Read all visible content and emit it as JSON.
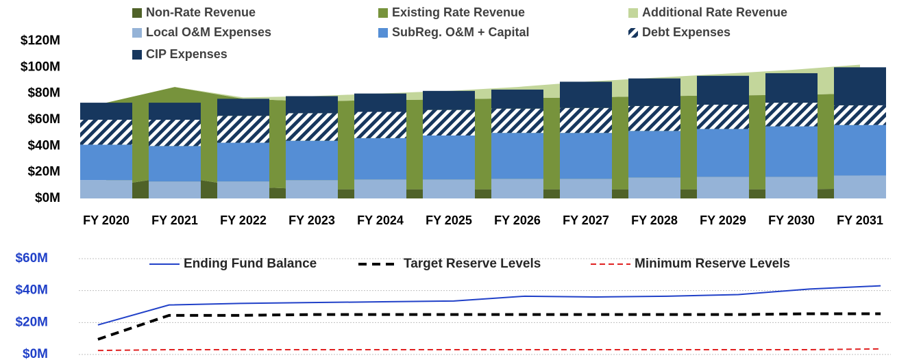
{
  "chart_data": [
    {
      "type": "bar",
      "categories": [
        "FY 2020",
        "FY 2021",
        "FY 2022",
        "FY 2023",
        "FY 2024",
        "FY 2025",
        "FY 2026",
        "FY 2027",
        "FY 2028",
        "FY 2029",
        "FY 2030",
        "FY 2031"
      ],
      "ylim": [
        0,
        120
      ],
      "yticks": [
        {
          "value": 0,
          "label": "$0M"
        },
        {
          "value": 20,
          "label": "$20M"
        },
        {
          "value": 40,
          "label": "$40M"
        },
        {
          "value": 60,
          "label": "$60M"
        },
        {
          "value": 80,
          "label": "$80M"
        },
        {
          "value": 100,
          "label": "$100M"
        },
        {
          "value": 120,
          "label": "$120M"
        }
      ],
      "series": [
        {
          "name": "Non-Rate Revenue",
          "color": "#4f6228",
          "mark": "area",
          "values": [
            9,
            17,
            9,
            7,
            7,
            7,
            7,
            7,
            7,
            7,
            7,
            7.5
          ]
        },
        {
          "name": "Existing Rate Revenue",
          "color": "#77933c",
          "mark": "area",
          "values": [
            64,
            68,
            67,
            67,
            68,
            68.5,
            69.5,
            70,
            71,
            71.5,
            72,
            72.5
          ]
        },
        {
          "name": "Additional Rate Revenue",
          "color": "#c3d69b",
          "mark": "area",
          "values": [
            0,
            0,
            1,
            4,
            5,
            6.5,
            8.5,
            12,
            14,
            16.5,
            19,
            22
          ]
        },
        {
          "name": "Local O&M Expenses",
          "color": "#95b3d7",
          "mark": "bar",
          "values": [
            14,
            13,
            13,
            14,
            14.5,
            14.5,
            15,
            15,
            16,
            16.5,
            16.5,
            17.5
          ]
        },
        {
          "name": "SubReg. O&M + Capital",
          "color": "#558ed5",
          "mark": "bar",
          "values": [
            27,
            27,
            29.5,
            30,
            31.5,
            33.5,
            35,
            35,
            35.5,
            36.5,
            38.5,
            38.5
          ]
        },
        {
          "name": "Debt Expenses",
          "color": "#17375e",
          "mark": "bar",
          "pattern": "hatch",
          "values": [
            19,
            20,
            20.5,
            21,
            20,
            19.5,
            18.5,
            19,
            19,
            18.5,
            18,
            15
          ]
        },
        {
          "name": "CIP Expenses",
          "color": "#17375e",
          "mark": "bar",
          "values": [
            13,
            13,
            13,
            13,
            14,
            14.5,
            14.5,
            20,
            21,
            22,
            22.5,
            29
          ]
        }
      ]
    },
    {
      "type": "line",
      "ylim": [
        0,
        60
      ],
      "yticks": [
        {
          "value": 0,
          "label": "$0M"
        },
        {
          "value": 20,
          "label": "$20M"
        },
        {
          "value": 40,
          "label": "$40M"
        },
        {
          "value": 60,
          "label": "$60M"
        }
      ],
      "grid": true,
      "series": [
        {
          "name": "Ending Fund Balance",
          "color": "#2040c8",
          "dash": "solid",
          "values": [
            18.5,
            31,
            32,
            32.5,
            33,
            33.5,
            36.5,
            36,
            36.5,
            37.5,
            41,
            43
          ]
        },
        {
          "name": "Target Reserve Levels",
          "color": "#000000",
          "dash": "dashed",
          "values": [
            9.5,
            24.5,
            24.5,
            25,
            25,
            25,
            25,
            25,
            25,
            25,
            25.5,
            25.5
          ]
        },
        {
          "name": "Minimum Reserve Levels",
          "color": "#e02020",
          "dash": "dashed",
          "values": [
            2.5,
            3,
            3,
            3,
            3,
            3,
            3,
            3,
            3,
            3,
            3,
            3.5
          ]
        }
      ]
    }
  ]
}
